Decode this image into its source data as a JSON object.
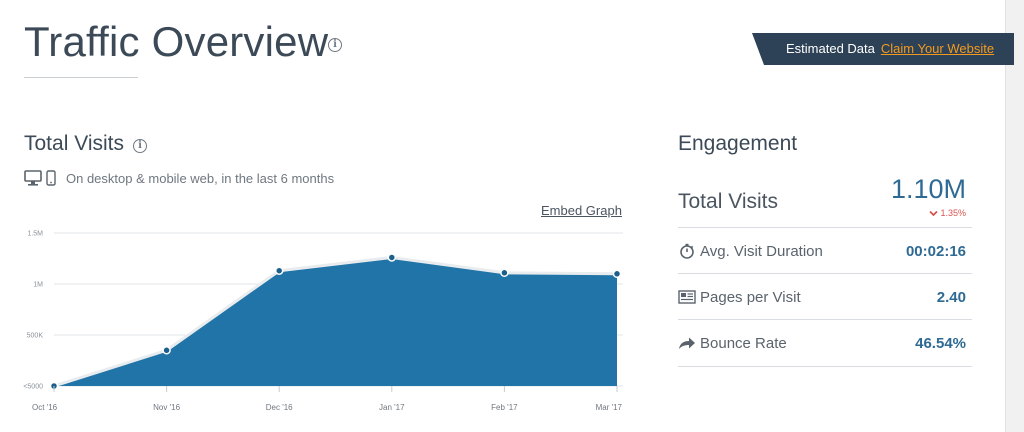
{
  "page": {
    "title": "Traffic Overview"
  },
  "banner": {
    "text": "Estimated Data",
    "link": "Claim Your Website"
  },
  "total_visits": {
    "title": "Total Visits",
    "device_text": "On desktop & mobile web, in the last 6 months",
    "embed_label": "Embed Graph"
  },
  "chart_data": {
    "type": "area",
    "categories": [
      "Oct '16",
      "Nov '16",
      "Dec '16",
      "Jan '17",
      "Feb '17",
      "Mar '17"
    ],
    "values": [
      0,
      350000,
      1130000,
      1260000,
      1110000,
      1100000
    ],
    "y_ticks": [
      {
        "label": "<5000",
        "value": 0
      },
      {
        "label": "500K",
        "value": 500000
      },
      {
        "label": "1M",
        "value": 1000000
      },
      {
        "label": "1.5M",
        "value": 1500000
      }
    ],
    "ylim": [
      0,
      1500000
    ],
    "grid": true,
    "color": "#2174a8"
  },
  "engagement": {
    "title": "Engagement",
    "total": {
      "label": "Total Visits",
      "value": "1.10M",
      "change": "1.35%"
    },
    "rows": [
      {
        "label": "Avg. Visit Duration",
        "value": "00:02:16",
        "icon": "stopwatch-icon"
      },
      {
        "label": "Pages per Visit",
        "value": "2.40",
        "icon": "pages-icon"
      },
      {
        "label": "Bounce Rate",
        "value": "46.54%",
        "icon": "bounce-arrow-icon"
      }
    ]
  }
}
